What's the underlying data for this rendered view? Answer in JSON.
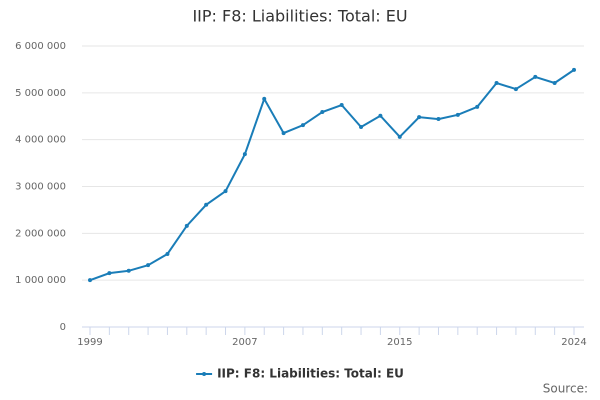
{
  "chart_data": {
    "type": "line",
    "title": "IIP: F8: Liabilities: Total: EU",
    "x": [
      1999,
      2000,
      2001,
      2002,
      2003,
      2004,
      2005,
      2006,
      2007,
      2008,
      2009,
      2010,
      2011,
      2012,
      2013,
      2014,
      2015,
      2016,
      2017,
      2018,
      2019,
      2020,
      2021,
      2022,
      2023,
      2024
    ],
    "series": [
      {
        "name": "IIP: F8: Liabilities: Total: EU",
        "color": "#1a7db8",
        "values": [
          1000000,
          1150000,
          1200000,
          1320000,
          1560000,
          2160000,
          2610000,
          2900000,
          3690000,
          4870000,
          4140000,
          4310000,
          4590000,
          4740000,
          4270000,
          4510000,
          4060000,
          4480000,
          4440000,
          4530000,
          4700000,
          5210000,
          5080000,
          5340000,
          5210000,
          5490000
        ]
      }
    ],
    "xlim": [
      1999,
      2024
    ],
    "xticks": [
      1999,
      2007,
      2015,
      2024
    ],
    "ylim": [
      0,
      6000000
    ],
    "yticks": [
      0,
      {
        "value": 1000000,
        "label": "1 000 000"
      },
      {
        "value": 2000000,
        "label": "2 000 000"
      },
      {
        "value": 3000000,
        "label": "3 000 000"
      },
      {
        "value": 4000000,
        "label": "4 000 000"
      },
      {
        "value": 5000000,
        "label": "5 000 000"
      },
      {
        "value": 6000000,
        "label": "6 000 000"
      }
    ],
    "grid": true,
    "legend": "bottom",
    "source": "Source:"
  }
}
